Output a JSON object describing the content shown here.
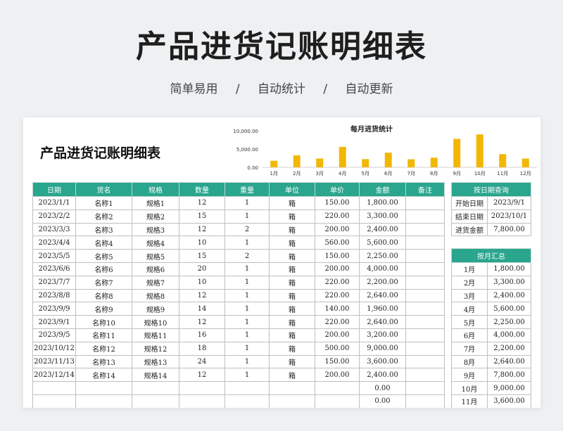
{
  "hero": {
    "title": "产品进货记账明细表",
    "tags": [
      "简单易用",
      "/",
      "自动统计",
      "/",
      "自动更新"
    ]
  },
  "sheet": {
    "title": "产品进货记账明细表"
  },
  "chart_data": {
    "type": "bar",
    "title": "每月进货统计",
    "categories": [
      "1月",
      "2月",
      "3月",
      "4月",
      "5月",
      "6月",
      "7月",
      "8月",
      "9月",
      "10月",
      "11月",
      "12月"
    ],
    "values": [
      1800,
      3300,
      2400,
      5600,
      2250,
      4000,
      2200,
      2640,
      7800,
      9000,
      3600,
      2400
    ],
    "ylim": [
      0,
      10000
    ],
    "yticks": [
      "0.00",
      "5,000.00",
      "10,000.00"
    ],
    "color": "#f2b705"
  },
  "main_table": {
    "headers": [
      "日期",
      "货名",
      "规格",
      "数量",
      "重量",
      "单位",
      "单价",
      "金额",
      "备注"
    ],
    "rows": [
      [
        "2023/1/1",
        "名称1",
        "规格1",
        "12",
        "1",
        "箱",
        "150.00",
        "1,800.00",
        ""
      ],
      [
        "2023/2/2",
        "名称2",
        "规格2",
        "15",
        "1",
        "箱",
        "220.00",
        "3,300.00",
        ""
      ],
      [
        "2023/3/3",
        "名称3",
        "规格3",
        "12",
        "2",
        "箱",
        "200.00",
        "2,400.00",
        ""
      ],
      [
        "2023/4/4",
        "名称4",
        "规格4",
        "10",
        "1",
        "箱",
        "560.00",
        "5,600.00",
        ""
      ],
      [
        "2023/5/5",
        "名称5",
        "规格5",
        "15",
        "2",
        "箱",
        "150.00",
        "2,250.00",
        ""
      ],
      [
        "2023/6/6",
        "名称6",
        "规格6",
        "20",
        "1",
        "箱",
        "200.00",
        "4,000.00",
        ""
      ],
      [
        "2023/7/7",
        "名称7",
        "规格7",
        "10",
        "1",
        "箱",
        "220.00",
        "2,200.00",
        ""
      ],
      [
        "2023/8/8",
        "名称8",
        "规格8",
        "12",
        "1",
        "箱",
        "220.00",
        "2,640.00",
        ""
      ],
      [
        "2023/9/9",
        "名称9",
        "规格9",
        "14",
        "1",
        "箱",
        "140.00",
        "1,960.00",
        ""
      ],
      [
        "2023/9/1",
        "名称10",
        "规格10",
        "12",
        "1",
        "箱",
        "220.00",
        "2,640.00",
        ""
      ],
      [
        "2023/9/5",
        "名称11",
        "规格11",
        "16",
        "1",
        "箱",
        "200.00",
        "3,200.00",
        ""
      ],
      [
        "2023/10/12",
        "名称12",
        "规格12",
        "18",
        "1",
        "箱",
        "500.00",
        "9,000.00",
        ""
      ],
      [
        "2023/11/13",
        "名称13",
        "规格13",
        "24",
        "1",
        "箱",
        "150.00",
        "3,600.00",
        ""
      ],
      [
        "2023/12/14",
        "名称14",
        "规格14",
        "12",
        "1",
        "箱",
        "200.00",
        "2,400.00",
        ""
      ],
      [
        "",
        "",
        "",
        "",
        "",
        "",
        "",
        "0.00",
        ""
      ],
      [
        "",
        "",
        "",
        "",
        "",
        "",
        "",
        "0.00",
        ""
      ]
    ]
  },
  "query": {
    "header": "按日期查询",
    "rows": [
      [
        "开始日期",
        "2023/9/1"
      ],
      [
        "结束日期",
        "2023/10/1"
      ],
      [
        "进货金额",
        "7,800.00"
      ]
    ]
  },
  "monthly": {
    "header": "按月汇总",
    "rows": [
      [
        "1月",
        "1,800.00"
      ],
      [
        "2月",
        "3,300.00"
      ],
      [
        "3月",
        "2,400.00"
      ],
      [
        "4月",
        "5,600.00"
      ],
      [
        "5月",
        "2,250.00"
      ],
      [
        "6月",
        "4,000.00"
      ],
      [
        "7月",
        "2,200.00"
      ],
      [
        "8月",
        "2,640.00"
      ],
      [
        "9月",
        "7,800.00"
      ],
      [
        "10月",
        "9,000.00"
      ],
      [
        "11月",
        "3,600.00"
      ]
    ]
  }
}
